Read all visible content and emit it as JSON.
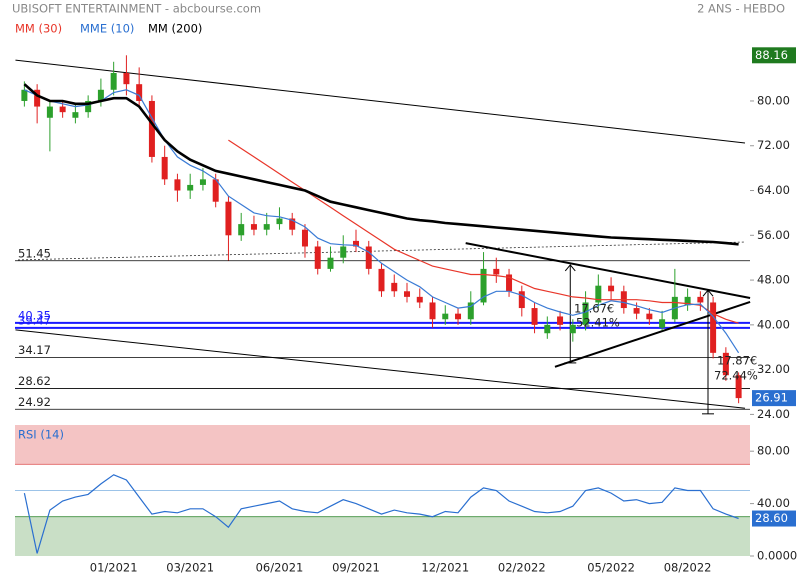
{
  "header": {
    "title": "UBISOFT ENTERTAINMENT - abcbourse.com",
    "period": "2 ANS - HEBDO"
  },
  "chart_data": [
    {
      "type": "candlestick",
      "categories": [
        null,
        null,
        null,
        null,
        null,
        null,
        null,
        "01/2021",
        null,
        null,
        null,
        null,
        null,
        "03/2021",
        null,
        null,
        null,
        null,
        null,
        null,
        "06/2021",
        null,
        null,
        null,
        null,
        null,
        "09/2021",
        null,
        null,
        null,
        null,
        null,
        null,
        "12/2021",
        null,
        null,
        null,
        null,
        null,
        "02/2022",
        null,
        null,
        null,
        null,
        null,
        null,
        "05/2022",
        null,
        null,
        null,
        null,
        null,
        "08/2022",
        null,
        null,
        null,
        null
      ],
      "open": [
        80,
        82,
        77,
        79,
        77,
        78,
        80,
        82,
        85,
        83,
        80,
        70,
        66,
        64,
        65,
        66,
        62,
        56,
        58,
        57,
        58,
        59,
        57,
        54,
        50,
        52,
        55,
        54,
        50,
        47.5,
        46,
        45,
        44,
        41,
        42,
        41,
        44,
        50,
        49,
        46,
        43,
        38.5,
        41.5,
        38.5,
        40,
        44,
        47,
        46,
        43,
        42,
        39.5,
        41,
        43.5,
        45,
        44,
        35,
        31
      ],
      "high": [
        83.5,
        83,
        80,
        80,
        79.5,
        81,
        84,
        87,
        88.16,
        86,
        81,
        72,
        67,
        67,
        68,
        67,
        63,
        60,
        59.5,
        60,
        61,
        60,
        58,
        55,
        54,
        56,
        57,
        55,
        51,
        49,
        47.5,
        46.5,
        45,
        43.5,
        43,
        46,
        53,
        52,
        50,
        47,
        44,
        41.5,
        42.5,
        41,
        46,
        49,
        48.5,
        47,
        44,
        43,
        42.5,
        50,
        46.5,
        46,
        45,
        36,
        31.5
      ],
      "low": [
        79,
        76,
        71,
        77,
        76,
        77,
        79,
        81,
        81,
        79,
        69,
        65,
        62,
        62.5,
        64,
        61,
        51.5,
        55,
        56,
        56,
        57,
        56,
        52,
        49,
        49.5,
        51,
        53,
        49,
        45,
        45,
        44,
        43,
        39.5,
        40,
        40,
        40,
        43.5,
        47.5,
        45,
        41.5,
        38.5,
        37.5,
        39,
        37,
        39,
        43,
        44.5,
        42,
        41,
        40,
        39,
        40.5,
        42.5,
        42.5,
        34,
        30,
        26
      ],
      "close": [
        82,
        79,
        79,
        78,
        78,
        80,
        82,
        85,
        83,
        80,
        70,
        66,
        64,
        65,
        66,
        62,
        56,
        58,
        57,
        58,
        59,
        57,
        54,
        50,
        52,
        54,
        54,
        50,
        46,
        46,
        45,
        44,
        41,
        42,
        41,
        44,
        50,
        49,
        46,
        43,
        40,
        40,
        40,
        40,
        44,
        47,
        46,
        43,
        42,
        41,
        41,
        45,
        45,
        44,
        35,
        31,
        26.91
      ],
      "up_color": "#2ca02c",
      "down_color": "#e02020",
      "series": [
        {
          "name": "MM (30)",
          "color": "#e8362a",
          "width": 1.2,
          "values": [
            null,
            null,
            null,
            null,
            null,
            null,
            null,
            null,
            null,
            null,
            null,
            null,
            null,
            null,
            null,
            null,
            73,
            71.5,
            70,
            68.5,
            67,
            65.5,
            64,
            62.5,
            61,
            59.5,
            58,
            56.5,
            55,
            53.5,
            52.5,
            51.5,
            50.5,
            50,
            49.5,
            49,
            49,
            48.8,
            48.5,
            47.5,
            46.5,
            46,
            45.5,
            45,
            44.8,
            44.5,
            44.5,
            44.5,
            44.5,
            44.3,
            44,
            44,
            43.8,
            43.5,
            42,
            41,
            40.3
          ]
        },
        {
          "name": "MME (10)",
          "color": "#3a7bd5",
          "width": 1.2,
          "values": [
            82,
            81,
            80,
            79.5,
            79,
            79.3,
            80,
            81.5,
            82,
            81,
            77,
            73,
            70,
            68.5,
            67.5,
            66,
            63,
            61.5,
            60,
            59.5,
            59.3,
            58.7,
            57.5,
            55.5,
            54.5,
            54.3,
            54.2,
            53,
            51,
            49.5,
            48,
            46.8,
            45,
            44,
            43,
            43.3,
            45,
            46,
            46,
            45.3,
            44,
            43,
            42.3,
            41.7,
            42.3,
            43.5,
            44.3,
            44,
            43.4,
            42.7,
            42.2,
            43,
            43.6,
            43.7,
            41.5,
            38.5,
            35
          ]
        },
        {
          "name": "MM (200)",
          "color": "#000000",
          "width": 2.6,
          "values": [
            83,
            81,
            80,
            80,
            79.5,
            79.5,
            80,
            80.5,
            80.5,
            79,
            76,
            73,
            71,
            69.5,
            68.5,
            67.5,
            67,
            66.5,
            66,
            65.5,
            65,
            64.5,
            64,
            63,
            62,
            61.5,
            61,
            60.5,
            60,
            59.5,
            59,
            58.7,
            58.5,
            58.2,
            58,
            57.8,
            57.6,
            57.4,
            57.2,
            57,
            56.8,
            56.6,
            56.4,
            56.2,
            56,
            55.8,
            55.6,
            55.5,
            55.4,
            55.3,
            55.2,
            55.1,
            55,
            54.9,
            54.8,
            54.6,
            54.4
          ]
        }
      ],
      "ylim": [
        23,
        90
      ],
      "yticks": [
        {
          "value": 24,
          "label": "24.00"
        },
        {
          "value": 32,
          "label": "32.00"
        },
        {
          "value": 40,
          "label": "40.00"
        },
        {
          "value": 48,
          "label": "48.00"
        },
        {
          "value": 56,
          "label": "56.00"
        },
        {
          "value": 64,
          "label": "64.00"
        },
        {
          "value": 72,
          "label": "72.00"
        },
        {
          "value": 80,
          "label": "80.00"
        }
      ],
      "levels": [
        51.45,
        40.35,
        39.47,
        34.17,
        28.62,
        24.92
      ],
      "level_colors": [
        "#000000",
        "#1a1aff",
        "#1a1aff",
        "#000000",
        "#000000",
        "#000000"
      ],
      "trendlines": [
        [
          -0.7,
          87.3,
          56.5,
          72.5
        ],
        [
          -0.7,
          39.1,
          56.5,
          25.1
        ],
        [
          34.6,
          54.6,
          56.9,
          44.8
        ],
        [
          41.6,
          32.5,
          56.9,
          44.1
        ]
      ],
      "dotted_lines": [
        [
          -0.5,
          51.6,
          56.5,
          54.8
        ]
      ],
      "measures": [
        [
          42.8,
          50.7,
          33.2
        ],
        [
          53.6,
          46.2,
          24.1
        ]
      ],
      "price_tags": [
        88.16,
        26.91
      ],
      "price_tag_colors": [
        "#1f7a1f",
        "#2a6fd0"
      ],
      "annotations": [
        "17.67€",
        "52.41%",
        "17.87€",
        "72.44%"
      ]
    },
    {
      "type": "line",
      "title": "RSI (14)",
      "series": [
        {
          "name": "RSI (14)",
          "color": "#2a6fd0",
          "values": [
            48,
            2,
            35,
            42,
            45,
            47,
            55,
            62,
            58,
            45,
            32,
            34,
            33,
            36,
            36,
            30,
            22,
            36,
            38,
            40,
            42,
            36,
            34,
            33,
            38,
            43,
            40,
            36,
            32,
            35,
            33,
            32,
            30,
            34,
            33,
            45,
            52,
            50,
            42,
            38,
            34,
            33,
            34,
            38,
            50,
            52,
            48,
            42,
            43,
            40,
            41,
            52,
            50,
            50,
            36,
            32,
            28.6
          ]
        }
      ],
      "ylim": [
        0,
        100
      ],
      "yticks": [
        {
          "value": 0,
          "label": "0.0000"
        },
        {
          "value": 40,
          "label": "40.00"
        },
        {
          "value": 80,
          "label": "80.00"
        }
      ],
      "zones": [
        [
          70,
          100
        ],
        [
          0,
          30
        ]
      ],
      "zone_colors": [
        "#f4c4c4",
        "#c9dfc6"
      ],
      "zone_line_colors": [
        "#e06060",
        "#3f8f3f"
      ],
      "levels": [
        50
      ],
      "value_tag": {
        "value": 28.6,
        "label": "28.60"
      }
    }
  ]
}
